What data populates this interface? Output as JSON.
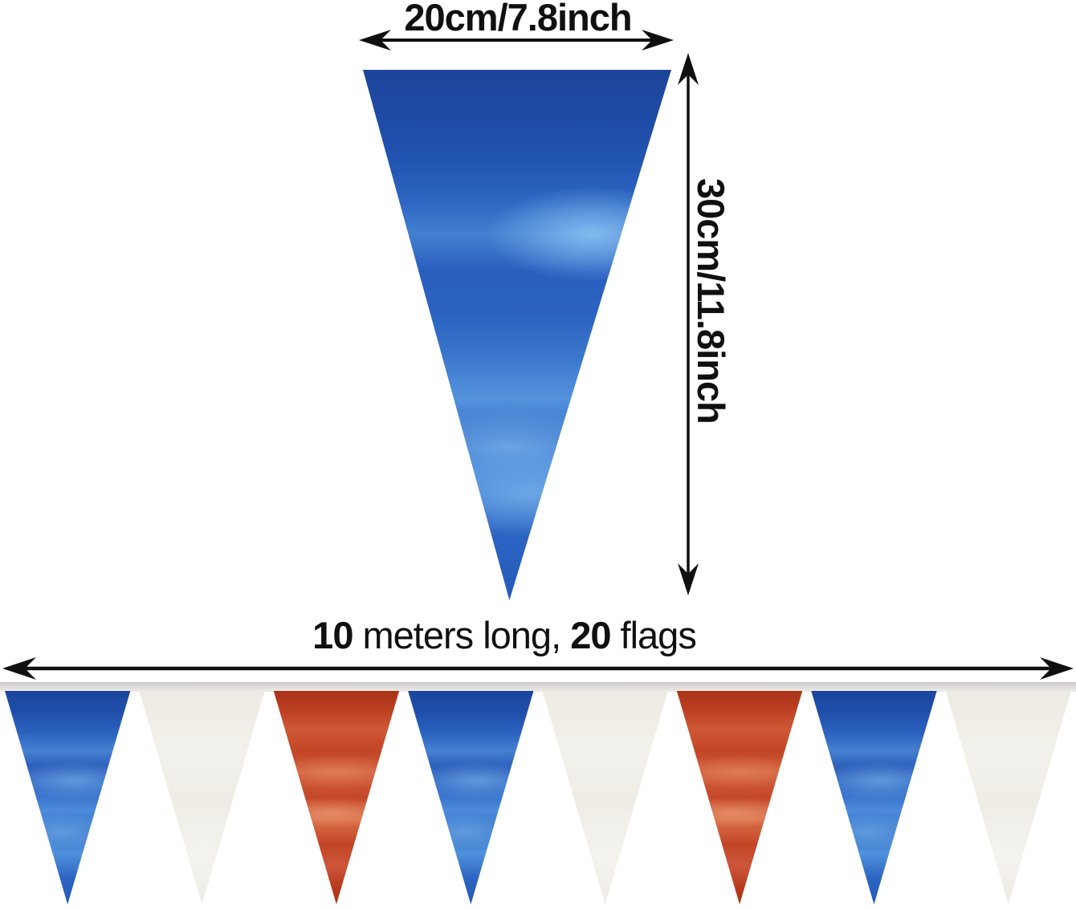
{
  "dimensions": {
    "width_label": "20cm/7.8inch",
    "height_label": "30cm/11.8inch"
  },
  "banner": {
    "length_value": "10",
    "length_text": " meters long, ",
    "flag_count": "20",
    "flags_text": " flags",
    "flags": [
      "blue",
      "white",
      "red",
      "blue",
      "white",
      "red",
      "blue",
      "white"
    ]
  },
  "colors": {
    "annotation": "#101010",
    "flag_blue": "#2c63c0",
    "flag_red": "#c4482a",
    "flag_white": "#f2efe9",
    "ribbon": "#d9d8d5",
    "background": "#ffffff"
  }
}
